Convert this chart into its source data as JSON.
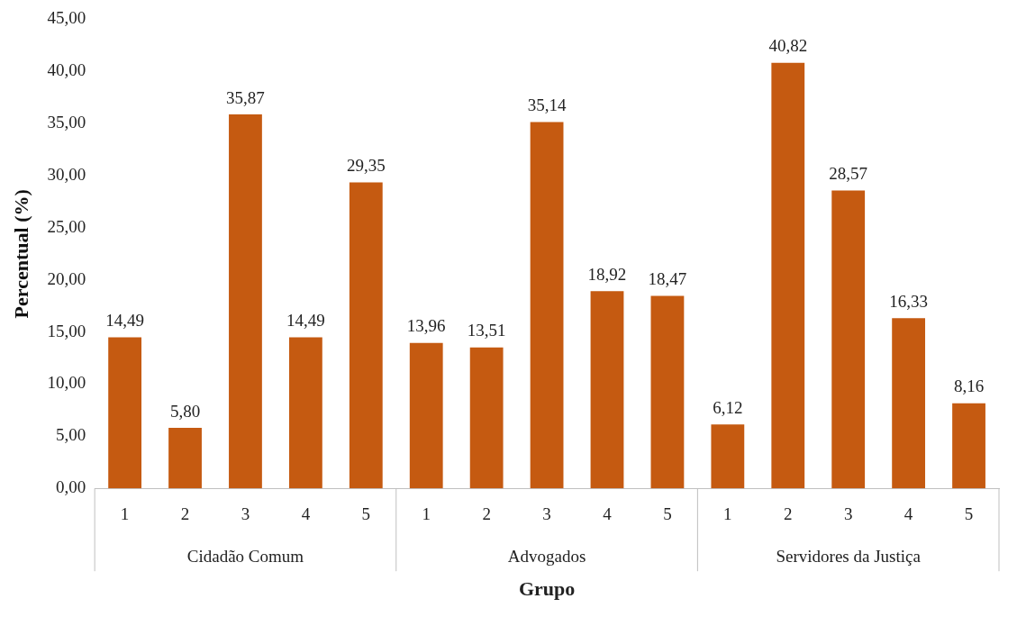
{
  "chart_data": {
    "type": "bar",
    "xlabel": "Grupo",
    "ylabel": "Percentual (%)",
    "categories": [
      "1",
      "2",
      "3",
      "4",
      "5",
      "1",
      "2",
      "3",
      "4",
      "5",
      "1",
      "2",
      "3",
      "4",
      "5"
    ],
    "series": [
      {
        "color": "#c55a11",
        "values": [
          14.49,
          5.8,
          35.87,
          14.49,
          29.35,
          13.96,
          13.51,
          35.14,
          18.92,
          18.47,
          6.12,
          40.82,
          28.57,
          16.33,
          8.16
        ],
        "value_labels": [
          "14,49",
          "5,80",
          "35,87",
          "14,49",
          "29,35",
          "13,96",
          "13,51",
          "35,14",
          "18,92",
          "18,47",
          "6,12",
          "40,82",
          "28,57",
          "16,33",
          "8,16"
        ]
      }
    ],
    "annotations": [
      "Cidadão Comum",
      "Advogados",
      "Servidores da Justiça"
    ],
    "ylim": [
      0,
      45
    ],
    "yticks": [
      {
        "value": 0,
        "label": "0,00"
      },
      {
        "value": 5,
        "label": "5,00"
      },
      {
        "value": 10,
        "label": "10,00"
      },
      {
        "value": 15,
        "label": "15,00"
      },
      {
        "value": 20,
        "label": "20,00"
      },
      {
        "value": 25,
        "label": "25,00"
      },
      {
        "value": 30,
        "label": "30,00"
      },
      {
        "value": 35,
        "label": "35,00"
      },
      {
        "value": 40,
        "label": "40,00"
      },
      {
        "value": 45,
        "label": "45,00"
      }
    ],
    "grid": false,
    "legend": false
  }
}
